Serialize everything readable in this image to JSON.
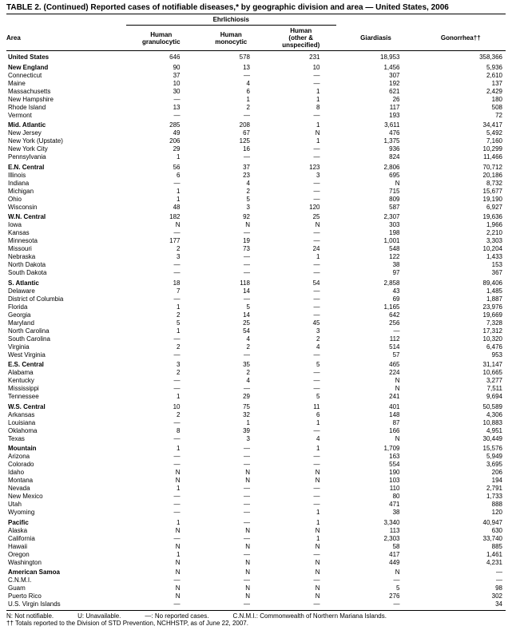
{
  "title": "TABLE 2. (Continued) Reported cases of notifiable diseases,* by geographic division and area — United States, 2006",
  "group_header": "Ehrlichiosis",
  "columns": {
    "area": "Area",
    "c1": "Human granulocytic",
    "c2": "Human monocytic",
    "c3": "Human (other & unspecified)",
    "c4": "Giardiasis",
    "c5": "Gonorrhea††"
  },
  "sections": [
    {
      "header": true,
      "rows": [
        {
          "area": "United States",
          "v": [
            "646",
            "578",
            "231",
            "18,953",
            "358,366"
          ]
        }
      ]
    },
    {
      "header": true,
      "rows": [
        {
          "area": "New England",
          "v": [
            "90",
            "13",
            "10",
            "1,456",
            "5,936"
          ]
        },
        {
          "area": "Connecticut",
          "v": [
            "37",
            "—",
            "—",
            "307",
            "2,610"
          ]
        },
        {
          "area": "Maine",
          "v": [
            "10",
            "4",
            "—",
            "192",
            "137"
          ]
        },
        {
          "area": "Massachusetts",
          "v": [
            "30",
            "6",
            "1",
            "621",
            "2,429"
          ]
        },
        {
          "area": "New Hampshire",
          "v": [
            "—",
            "1",
            "1",
            "26",
            "180"
          ]
        },
        {
          "area": "Rhode Island",
          "v": [
            "13",
            "2",
            "8",
            "117",
            "508"
          ]
        },
        {
          "area": "Vermont",
          "v": [
            "—",
            "—",
            "—",
            "193",
            "72"
          ]
        }
      ]
    },
    {
      "header": true,
      "rows": [
        {
          "area": "Mid. Atlantic",
          "v": [
            "285",
            "208",
            "1",
            "3,611",
            "34,417"
          ]
        },
        {
          "area": "New Jersey",
          "v": [
            "49",
            "67",
            "N",
            "476",
            "5,492"
          ]
        },
        {
          "area": "New York (Upstate)",
          "v": [
            "206",
            "125",
            "1",
            "1,375",
            "7,160"
          ]
        },
        {
          "area": "New York City",
          "v": [
            "29",
            "16",
            "—",
            "936",
            "10,299"
          ]
        },
        {
          "area": "Pennsylvania",
          "v": [
            "1",
            "—",
            "—",
            "824",
            "11,466"
          ]
        }
      ]
    },
    {
      "header": true,
      "rows": [
        {
          "area": "E.N. Central",
          "v": [
            "56",
            "37",
            "123",
            "2,806",
            "70,712"
          ]
        },
        {
          "area": "Illinois",
          "v": [
            "6",
            "23",
            "3",
            "695",
            "20,186"
          ]
        },
        {
          "area": "Indiana",
          "v": [
            "—",
            "4",
            "—",
            "N",
            "8,732"
          ]
        },
        {
          "area": "Michigan",
          "v": [
            "1",
            "2",
            "—",
            "715",
            "15,677"
          ]
        },
        {
          "area": "Ohio",
          "v": [
            "1",
            "5",
            "—",
            "809",
            "19,190"
          ]
        },
        {
          "area": "Wisconsin",
          "v": [
            "48",
            "3",
            "120",
            "587",
            "6,927"
          ]
        }
      ]
    },
    {
      "header": true,
      "rows": [
        {
          "area": "W.N. Central",
          "v": [
            "182",
            "92",
            "25",
            "2,307",
            "19,636"
          ]
        },
        {
          "area": "Iowa",
          "v": [
            "N",
            "N",
            "N",
            "303",
            "1,966"
          ]
        },
        {
          "area": "Kansas",
          "v": [
            "—",
            "—",
            "—",
            "198",
            "2,210"
          ]
        },
        {
          "area": "Minnesota",
          "v": [
            "177",
            "19",
            "—",
            "1,001",
            "3,303"
          ]
        },
        {
          "area": "Missouri",
          "v": [
            "2",
            "73",
            "24",
            "548",
            "10,204"
          ]
        },
        {
          "area": "Nebraska",
          "v": [
            "3",
            "—",
            "1",
            "122",
            "1,433"
          ]
        },
        {
          "area": "North Dakota",
          "v": [
            "—",
            "—",
            "—",
            "38",
            "153"
          ]
        },
        {
          "area": "South Dakota",
          "v": [
            "—",
            "—",
            "—",
            "97",
            "367"
          ]
        }
      ]
    },
    {
      "header": true,
      "rows": [
        {
          "area": "S. Atlantic",
          "v": [
            "18",
            "118",
            "54",
            "2,858",
            "89,406"
          ]
        },
        {
          "area": "Delaware",
          "v": [
            "7",
            "14",
            "—",
            "43",
            "1,485"
          ]
        },
        {
          "area": "District of Columbia",
          "v": [
            "—",
            "—",
            "—",
            "69",
            "1,887"
          ]
        },
        {
          "area": "Florida",
          "v": [
            "1",
            "5",
            "—",
            "1,165",
            "23,976"
          ]
        },
        {
          "area": "Georgia",
          "v": [
            "2",
            "14",
            "—",
            "642",
            "19,669"
          ]
        },
        {
          "area": "Maryland",
          "v": [
            "5",
            "25",
            "45",
            "256",
            "7,328"
          ]
        },
        {
          "area": "North Carolina",
          "v": [
            "1",
            "54",
            "3",
            "—",
            "17,312"
          ]
        },
        {
          "area": "South Carolina",
          "v": [
            "—",
            "4",
            "2",
            "112",
            "10,320"
          ]
        },
        {
          "area": "Virginia",
          "v": [
            "2",
            "2",
            "4",
            "514",
            "6,476"
          ]
        },
        {
          "area": "West Virginia",
          "v": [
            "—",
            "—",
            "—",
            "57",
            "953"
          ]
        }
      ]
    },
    {
      "header": true,
      "rows": [
        {
          "area": "E.S. Central",
          "v": [
            "3",
            "35",
            "5",
            "465",
            "31,147"
          ]
        },
        {
          "area": "Alabama",
          "v": [
            "2",
            "2",
            "—",
            "224",
            "10,665"
          ]
        },
        {
          "area": "Kentucky",
          "v": [
            "—",
            "4",
            "—",
            "N",
            "3,277"
          ]
        },
        {
          "area": "Mississippi",
          "v": [
            "—",
            "—",
            "—",
            "N",
            "7,511"
          ]
        },
        {
          "area": "Tennessee",
          "v": [
            "1",
            "29",
            "5",
            "241",
            "9,694"
          ]
        }
      ]
    },
    {
      "header": true,
      "rows": [
        {
          "area": "W.S. Central",
          "v": [
            "10",
            "75",
            "11",
            "401",
            "50,589"
          ]
        },
        {
          "area": "Arkansas",
          "v": [
            "2",
            "32",
            "6",
            "148",
            "4,306"
          ]
        },
        {
          "area": "Louisiana",
          "v": [
            "—",
            "1",
            "1",
            "87",
            "10,883"
          ]
        },
        {
          "area": "Oklahoma",
          "v": [
            "8",
            "39",
            "—",
            "166",
            "4,951"
          ]
        },
        {
          "area": "Texas",
          "v": [
            "—",
            "3",
            "4",
            "N",
            "30,449"
          ]
        }
      ]
    },
    {
      "header": true,
      "rows": [
        {
          "area": "Mountain",
          "v": [
            "1",
            "—",
            "1",
            "1,709",
            "15,576"
          ]
        },
        {
          "area": "Arizona",
          "v": [
            "—",
            "—",
            "—",
            "163",
            "5,949"
          ]
        },
        {
          "area": "Colorado",
          "v": [
            "—",
            "—",
            "—",
            "554",
            "3,695"
          ]
        },
        {
          "area": "Idaho",
          "v": [
            "N",
            "N",
            "N",
            "190",
            "206"
          ]
        },
        {
          "area": "Montana",
          "v": [
            "N",
            "N",
            "N",
            "103",
            "194"
          ]
        },
        {
          "area": "Nevada",
          "v": [
            "1",
            "—",
            "—",
            "110",
            "2,791"
          ]
        },
        {
          "area": "New Mexico",
          "v": [
            "—",
            "—",
            "—",
            "80",
            "1,733"
          ]
        },
        {
          "area": "Utah",
          "v": [
            "—",
            "—",
            "—",
            "471",
            "888"
          ]
        },
        {
          "area": "Wyoming",
          "v": [
            "—",
            "—",
            "1",
            "38",
            "120"
          ]
        }
      ]
    },
    {
      "header": true,
      "rows": [
        {
          "area": "Pacific",
          "v": [
            "1",
            "—",
            "1",
            "3,340",
            "40,947"
          ]
        },
        {
          "area": "Alaska",
          "v": [
            "N",
            "N",
            "N",
            "113",
            "630"
          ]
        },
        {
          "area": "California",
          "v": [
            "—",
            "—",
            "1",
            "2,303",
            "33,740"
          ]
        },
        {
          "area": "Hawaii",
          "v": [
            "N",
            "N",
            "N",
            "58",
            "885"
          ]
        },
        {
          "area": "Oregon",
          "v": [
            "1",
            "—",
            "—",
            "417",
            "1,461"
          ]
        },
        {
          "area": "Washington",
          "v": [
            "N",
            "N",
            "N",
            "449",
            "4,231"
          ]
        }
      ]
    },
    {
      "header": true,
      "rows": [
        {
          "area": "American Samoa",
          "v": [
            "N",
            "N",
            "N",
            "N",
            "—"
          ]
        },
        {
          "area": "C.N.M.I.",
          "v": [
            "—",
            "—",
            "—",
            "—",
            "—"
          ]
        },
        {
          "area": "Guam",
          "v": [
            "N",
            "N",
            "N",
            "5",
            "98"
          ]
        },
        {
          "area": "Puerto Rico",
          "v": [
            "N",
            "N",
            "N",
            "276",
            "302"
          ]
        },
        {
          "area": "U.S. Virgin Islands",
          "v": [
            "—",
            "—",
            "—",
            "—",
            "34"
          ]
        }
      ]
    }
  ],
  "footnotes": {
    "line1": {
      "a": "N: Not notifiable.",
      "b": "U: Unavailable.",
      "c": "—: No reported cases.",
      "d": "C.N.M.I.: Commonwealth of Northern Mariana Islands."
    },
    "line2": "†† Totals reported to the Division of STD Prevention, NCHHSTP, as of June 22, 2007."
  },
  "style": {
    "col_widths": [
      "24%",
      "14%",
      "14%",
      "14%",
      "16%",
      "18%"
    ]
  }
}
